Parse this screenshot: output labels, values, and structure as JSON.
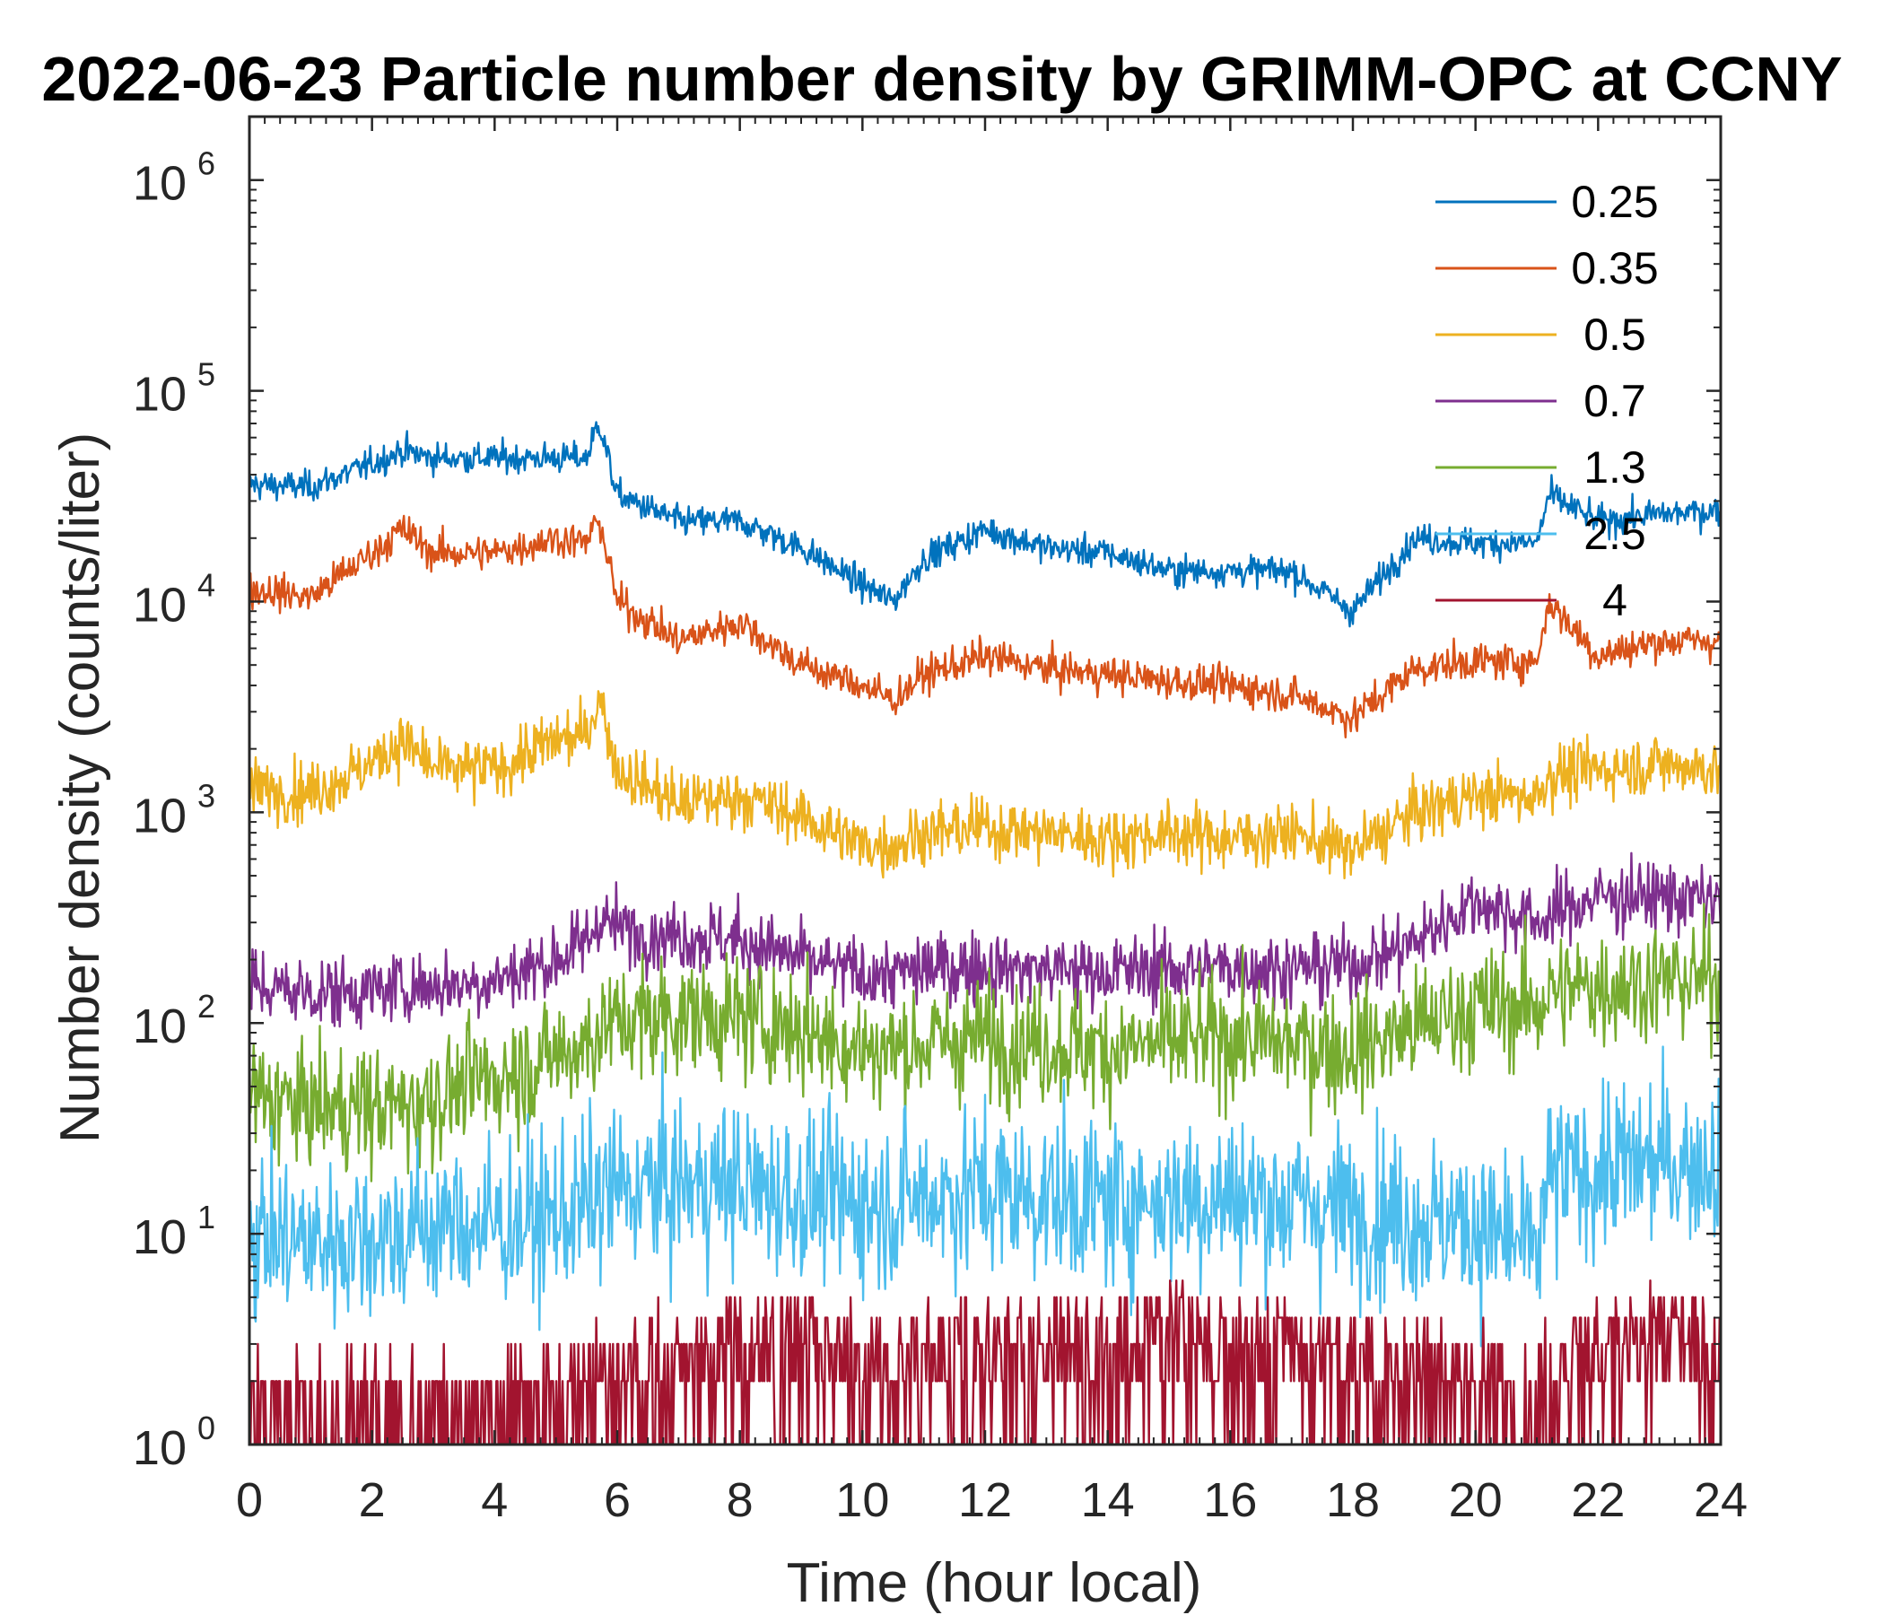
{
  "chart_data": {
    "type": "line",
    "title": "2022-06-23 Particle number density by GRIMM-OPC at CCNY",
    "xlabel": "Time (hour local)",
    "ylabel": "Number density (counts/liter)",
    "xlim": [
      0,
      24
    ],
    "ylim": [
      1,
      2000000
    ],
    "yscale": "log",
    "xticks": [
      "0",
      "2",
      "4",
      "6",
      "8",
      "10",
      "12",
      "14",
      "16",
      "18",
      "20",
      "22",
      "24"
    ],
    "yticks": [
      {
        "base": "10",
        "exp": "0"
      },
      {
        "base": "10",
        "exp": "1"
      },
      {
        "base": "10",
        "exp": "2"
      },
      {
        "base": "10",
        "exp": "3"
      },
      {
        "base": "10",
        "exp": "4"
      },
      {
        "base": "10",
        "exp": "5"
      },
      {
        "base": "10",
        "exp": "6"
      }
    ],
    "grid": false,
    "legend_position": "top-right",
    "x": [
      0,
      1,
      2,
      2.5,
      3,
      4,
      5,
      5.5,
      5.7,
      6,
      7,
      8,
      9,
      10,
      10.5,
      11,
      12,
      13,
      14,
      15,
      16,
      17,
      18,
      19,
      20,
      21,
      21.2,
      22,
      23,
      24
    ],
    "series": [
      {
        "name": "0.25",
        "color": "#0072BD",
        "noise": 0.05,
        "values": [
          36000,
          35000,
          45000,
          52000,
          48000,
          48000,
          48000,
          48000,
          72000,
          32000,
          24000,
          24000,
          18000,
          12000,
          10000,
          16000,
          22000,
          18000,
          17000,
          14000,
          14000,
          14000,
          9000,
          20000,
          19000,
          19000,
          32000,
          24000,
          26000,
          27000
        ]
      },
      {
        "name": "0.35",
        "color": "#D95319",
        "noise": 0.06,
        "values": [
          11500,
          10500,
          17000,
          22000,
          17000,
          17000,
          20000,
          19000,
          25000,
          10000,
          6500,
          8000,
          5000,
          4000,
          3400,
          4500,
          5500,
          4800,
          4500,
          4200,
          4000,
          3600,
          2800,
          4800,
          5200,
          5200,
          10000,
          5500,
          6500,
          6500
        ]
      },
      {
        "name": "0.5",
        "color": "#EDB120",
        "noise": 0.1,
        "values": [
          1300,
          1250,
          1700,
          2200,
          1600,
          1600,
          2200,
          2300,
          3600,
          1600,
          1100,
          1200,
          950,
          700,
          700,
          800,
          850,
          800,
          750,
          800,
          750,
          800,
          650,
          1000,
          1200,
          1200,
          1500,
          1600,
          1700,
          1600
        ]
      },
      {
        "name": "0.7",
        "color": "#7E2F8E",
        "noise": 0.12,
        "values": [
          150,
          140,
          140,
          150,
          150,
          160,
          200,
          240,
          320,
          280,
          260,
          250,
          200,
          170,
          170,
          180,
          185,
          180,
          175,
          180,
          185,
          180,
          190,
          240,
          380,
          300,
          320,
          400,
          400,
          380
        ]
      },
      {
        "name": "1.3",
        "color": "#77AC30",
        "noise": 0.2,
        "values": [
          45,
          40,
          40,
          40,
          45,
          55,
          70,
          80,
          95,
          100,
          110,
          105,
          95,
          75,
          75,
          80,
          85,
          80,
          75,
          80,
          85,
          80,
          75,
          95,
          120,
          120,
          140,
          150,
          160,
          160
        ]
      },
      {
        "name": "2.5",
        "color": "#4DBEEE",
        "noise": 0.28,
        "values": [
          10,
          9,
          10,
          10,
          11,
          11,
          12,
          14,
          15,
          16,
          17,
          17,
          15,
          14,
          14,
          15,
          16,
          15,
          14,
          15,
          15,
          14,
          13,
          12,
          11,
          8,
          18,
          20,
          22,
          22
        ]
      },
      {
        "name": "4",
        "color": "#A2142F",
        "noise": 0.35,
        "values": [
          1.5,
          1.3,
          1.2,
          1.3,
          1.3,
          1.4,
          1.6,
          1.7,
          1.8,
          2.0,
          2.3,
          2.8,
          2.8,
          2.2,
          2.0,
          2.3,
          2.5,
          2.5,
          2.8,
          3.2,
          2.6,
          2.5,
          2.2,
          2.2,
          1.8,
          1.4,
          2.2,
          2.6,
          2.8,
          2.6
        ]
      }
    ]
  }
}
